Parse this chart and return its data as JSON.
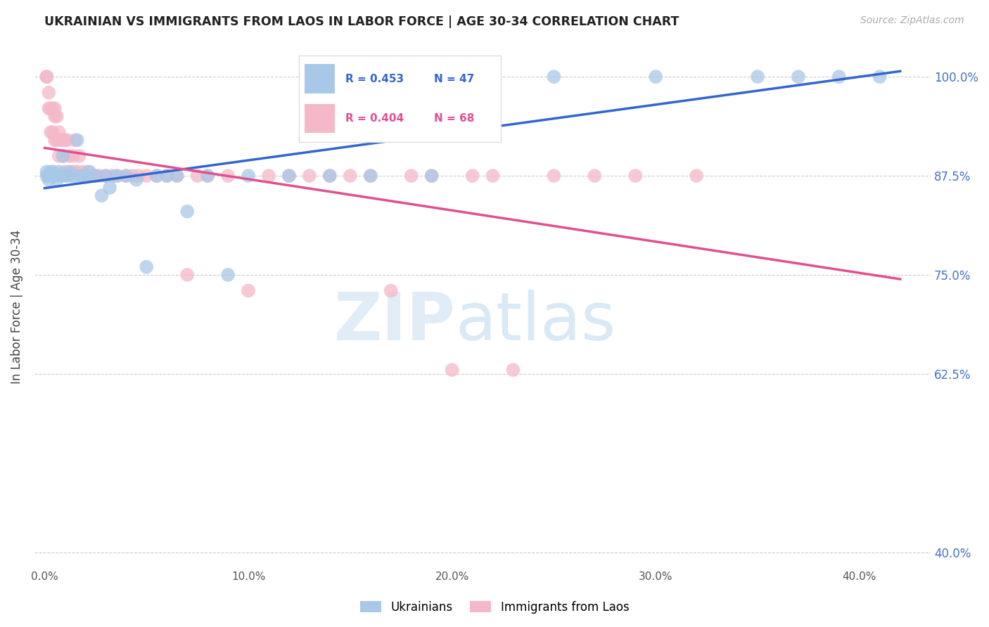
{
  "title": "UKRAINIAN VS IMMIGRANTS FROM LAOS IN LABOR FORCE | AGE 30-34 CORRELATION CHART",
  "source": "Source: ZipAtlas.com",
  "ylabel": "In Labor Force | Age 30-34",
  "y_tick_labels": [
    "40.0%",
    "62.5%",
    "75.0%",
    "87.5%",
    "100.0%"
  ],
  "y_tick_values": [
    0.4,
    0.625,
    0.75,
    0.875,
    1.0
  ],
  "x_tick_labels": [
    "0.0%",
    "10.0%",
    "20.0%",
    "30.0%",
    "40.0%"
  ],
  "x_tick_values": [
    0.0,
    0.1,
    0.2,
    0.3,
    0.4
  ],
  "ylim": [
    0.38,
    1.04
  ],
  "xlim": [
    -0.005,
    0.435
  ],
  "r_ukrainian": 0.453,
  "n_ukrainian": 47,
  "r_laos": 0.404,
  "n_laos": 68,
  "ukrainian_color": "#a8c8e8",
  "laos_color": "#f4b8c8",
  "trendline_ukrainian_color": "#3366cc",
  "trendline_laos_color": "#e05090",
  "watermark_zip": "ZIP",
  "watermark_atlas": "atlas",
  "ukrainian_x": [
    0.001,
    0.001,
    0.002,
    0.002,
    0.003,
    0.004,
    0.004,
    0.005,
    0.006,
    0.007,
    0.008,
    0.009,
    0.01,
    0.011,
    0.012,
    0.013,
    0.015,
    0.016,
    0.018,
    0.02,
    0.022,
    0.025,
    0.028,
    0.03,
    0.032,
    0.035,
    0.04,
    0.045,
    0.05,
    0.055,
    0.06,
    0.065,
    0.07,
    0.08,
    0.09,
    0.1,
    0.12,
    0.14,
    0.16,
    0.19,
    0.22,
    0.25,
    0.3,
    0.35,
    0.37,
    0.39,
    0.41
  ],
  "ukrainian_y": [
    0.875,
    0.88,
    0.875,
    0.87,
    0.88,
    0.875,
    0.88,
    0.875,
    0.87,
    0.88,
    0.875,
    0.9,
    0.875,
    0.875,
    0.88,
    0.875,
    0.875,
    0.92,
    0.875,
    0.875,
    0.88,
    0.875,
    0.85,
    0.875,
    0.86,
    0.875,
    0.875,
    0.87,
    0.76,
    0.875,
    0.875,
    0.875,
    0.83,
    0.875,
    0.75,
    0.875,
    0.875,
    0.875,
    0.875,
    0.875,
    1.0,
    1.0,
    1.0,
    1.0,
    1.0,
    1.0,
    1.0
  ],
  "laos_x": [
    0.001,
    0.001,
    0.002,
    0.002,
    0.003,
    0.003,
    0.004,
    0.004,
    0.005,
    0.005,
    0.005,
    0.006,
    0.006,
    0.007,
    0.007,
    0.008,
    0.009,
    0.009,
    0.01,
    0.01,
    0.011,
    0.012,
    0.013,
    0.014,
    0.015,
    0.015,
    0.016,
    0.017,
    0.018,
    0.019,
    0.02,
    0.021,
    0.022,
    0.023,
    0.025,
    0.027,
    0.03,
    0.033,
    0.036,
    0.04,
    0.043,
    0.046,
    0.05,
    0.055,
    0.06,
    0.065,
    0.07,
    0.075,
    0.08,
    0.09,
    0.1,
    0.11,
    0.12,
    0.13,
    0.14,
    0.15,
    0.16,
    0.17,
    0.18,
    0.19,
    0.2,
    0.21,
    0.22,
    0.23,
    0.25,
    0.27,
    0.29,
    0.32
  ],
  "laos_y": [
    1.0,
    1.0,
    0.98,
    0.96,
    0.96,
    0.93,
    0.96,
    0.93,
    0.96,
    0.95,
    0.92,
    0.95,
    0.92,
    0.93,
    0.9,
    0.92,
    0.9,
    0.92,
    0.92,
    0.88,
    0.92,
    0.9,
    0.88,
    0.9,
    0.88,
    0.92,
    0.88,
    0.9,
    0.875,
    0.88,
    0.875,
    0.88,
    0.875,
    0.875,
    0.875,
    0.875,
    0.875,
    0.875,
    0.875,
    0.875,
    0.875,
    0.875,
    0.875,
    0.875,
    0.875,
    0.875,
    0.75,
    0.875,
    0.875,
    0.875,
    0.73,
    0.875,
    0.875,
    0.875,
    0.875,
    0.875,
    0.875,
    0.73,
    0.875,
    0.875,
    0.63,
    0.875,
    0.875,
    0.63,
    0.875,
    0.875,
    0.875,
    0.875
  ]
}
